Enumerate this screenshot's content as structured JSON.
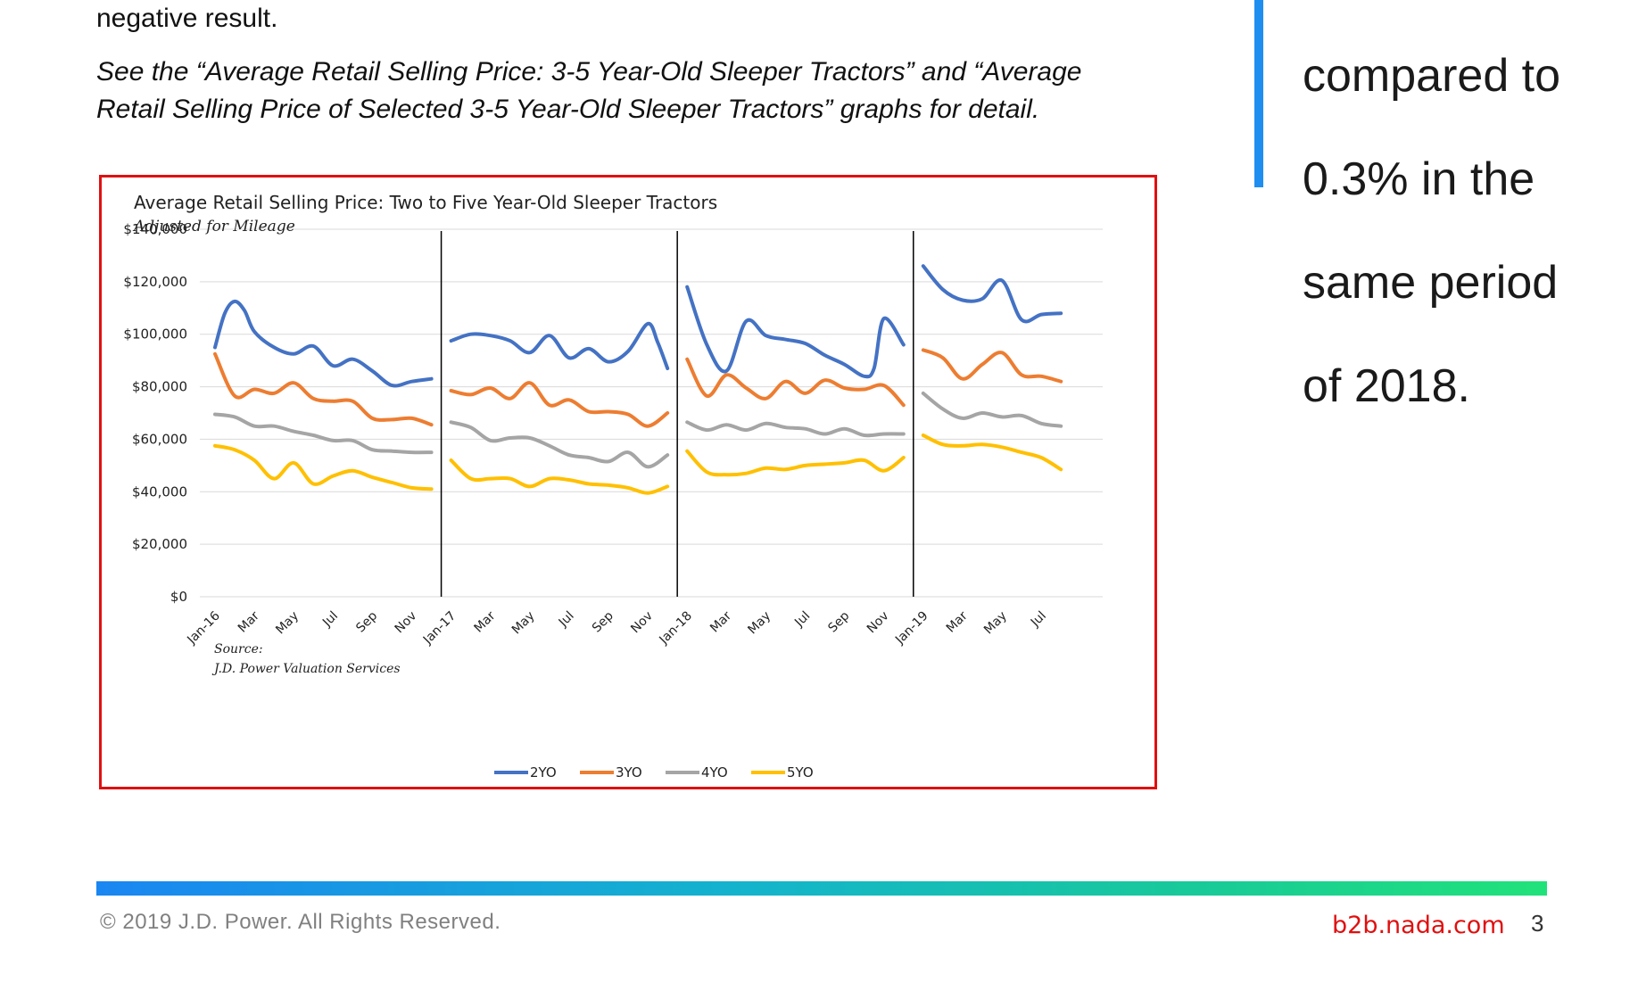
{
  "page": {
    "intro_text": "negative result.",
    "see_text": " See the “Average Retail Selling Price: 3-5 Year-Old Sleeper Tractors” and “Average Retail Selling Price of Selected 3-5 Year-Old Sleeper Tractors” graphs for detail.",
    "callout_lines": [
      "compared to",
      "0.3% in the",
      "same period",
      "of 2018."
    ],
    "footer": {
      "copyright": "© 2019 J.D. Power. All Rights Reserved.",
      "site": "b2b.nada.com",
      "page_number": "3"
    }
  },
  "colors": {
    "frame": "#e01010",
    "callout_bar": "#1f8ef1",
    "2YO": "#4472c4",
    "3YO": "#ed7d31",
    "4YO": "#a5a5a5",
    "5YO": "#ffc000"
  },
  "chart_data": {
    "type": "line",
    "title": "Average Retail Selling Price: Two to Five Year-Old Sleeper Tractors",
    "subtitle": "Adjusted for Mileage",
    "source_label": "Source:",
    "source_text": "J.D. Power Valuation Services",
    "ylim": [
      0,
      140000
    ],
    "yticks": [
      0,
      20000,
      40000,
      60000,
      80000,
      100000,
      120000,
      140000
    ],
    "ytick_labels": [
      "$0",
      "$20,000",
      "$40,000",
      "$60,000",
      "$80,000",
      "$100,000",
      "$120,000",
      "$140,000"
    ],
    "grid": true,
    "legend_position": "bottom",
    "x_tick_labels": [
      "Jan-16",
      "Mar",
      "May",
      "Jul",
      "Sep",
      "Nov",
      "Jan-17",
      "Mar",
      "May",
      "Jul",
      "Sep",
      "Nov",
      "Jan-18",
      "Mar",
      "May",
      "Jul",
      "Sep",
      "Nov",
      "Jan-19",
      "Mar",
      "May",
      "Jul"
    ],
    "x_tick_months": [
      0,
      2,
      4,
      6,
      8,
      10,
      12,
      14,
      16,
      18,
      20,
      22,
      24,
      26,
      28,
      30,
      32,
      34,
      36,
      38,
      40,
      42
    ],
    "year_dividers": [
      11.5,
      23.5,
      35.5
    ],
    "series": [
      {
        "name": "2YO",
        "segments": [
          {
            "x": [
              0,
              0.5,
              1,
              1.5,
              2,
              3,
              4,
              5,
              6,
              7,
              8,
              9,
              10,
              11
            ],
            "y": [
              95000,
              108000,
              112500,
              109000,
              101000,
              95000,
              92500,
              95500,
              88000,
              90500,
              86000,
              80500,
              82000,
              83000
            ]
          },
          {
            "x": [
              12,
              13,
              14,
              15,
              16,
              17,
              18,
              19,
              20,
              21,
              22,
              22.5,
              23
            ],
            "y": [
              97500,
              100000,
              99500,
              97500,
              93000,
              99500,
              91000,
              94500,
              89500,
              93500,
              104000,
              97000,
              87000
            ]
          },
          {
            "x": [
              24,
              25,
              26,
              27,
              28,
              29,
              30,
              31,
              32,
              33,
              33.5,
              34,
              35
            ],
            "y": [
              118000,
              96000,
              86000,
              105000,
              99500,
              98000,
              96500,
              92000,
              88500,
              84000,
              87000,
              106000,
              96000
            ]
          },
          {
            "x": [
              36,
              37,
              38,
              39,
              40,
              41,
              42,
              43
            ],
            "y": [
              126000,
              117000,
              113000,
              113500,
              120500,
              105500,
              107500,
              108000
            ]
          }
        ]
      },
      {
        "name": "3YO",
        "segments": [
          {
            "x": [
              0,
              1,
              2,
              3,
              4,
              5,
              6,
              7,
              8,
              9,
              10,
              11
            ],
            "y": [
              92500,
              76500,
              79000,
              77500,
              81500,
              75500,
              74500,
              74500,
              68000,
              67500,
              68000,
              65500
            ]
          },
          {
            "x": [
              12,
              13,
              14,
              15,
              16,
              17,
              18,
              19,
              20,
              21,
              22,
              23
            ],
            "y": [
              78500,
              77000,
              79500,
              75500,
              81500,
              73000,
              75000,
              70500,
              70500,
              69500,
              65000,
              70000
            ]
          },
          {
            "x": [
              24,
              25,
              26,
              27,
              28,
              29,
              30,
              31,
              32,
              33,
              34,
              35
            ],
            "y": [
              90500,
              76500,
              84500,
              79500,
              75500,
              82000,
              77500,
              82500,
              79500,
              79000,
              80500,
              73000
            ]
          },
          {
            "x": [
              36,
              37,
              38,
              39,
              40,
              41,
              42,
              43
            ],
            "y": [
              94000,
              91000,
              83000,
              88500,
              93000,
              84500,
              84000,
              82000
            ]
          }
        ]
      },
      {
        "name": "4YO",
        "segments": [
          {
            "x": [
              0,
              1,
              2,
              3,
              4,
              5,
              6,
              7,
              8,
              9,
              10,
              11
            ],
            "y": [
              69500,
              68500,
              65000,
              65000,
              63000,
              61500,
              59500,
              59500,
              56000,
              55500,
              55000,
              55000
            ]
          },
          {
            "x": [
              12,
              13,
              14,
              15,
              16,
              17,
              18,
              19,
              20,
              21,
              22,
              23
            ],
            "y": [
              66500,
              64500,
              59500,
              60500,
              60500,
              57500,
              54000,
              53000,
              51500,
              55000,
              49500,
              54000
            ]
          },
          {
            "x": [
              24,
              25,
              26,
              27,
              28,
              29,
              30,
              31,
              32,
              33,
              34,
              35
            ],
            "y": [
              66500,
              63500,
              65500,
              63500,
              66000,
              64500,
              64000,
              62000,
              64000,
              61500,
              62000,
              62000
            ]
          },
          {
            "x": [
              36,
              37,
              38,
              39,
              40,
              41,
              42,
              43
            ],
            "y": [
              77500,
              71500,
              68000,
              70000,
              68500,
              69000,
              66000,
              65000
            ]
          }
        ]
      },
      {
        "name": "5YO",
        "segments": [
          {
            "x": [
              0,
              1,
              2,
              3,
              4,
              5,
              6,
              7,
              8,
              9,
              10,
              11
            ],
            "y": [
              57500,
              56000,
              52000,
              45000,
              51000,
              43000,
              46000,
              48000,
              45500,
              43500,
              41500,
              41000
            ]
          },
          {
            "x": [
              12,
              13,
              14,
              15,
              16,
              17,
              18,
              19,
              20,
              21,
              22,
              23
            ],
            "y": [
              52000,
              45000,
              45000,
              45000,
              42000,
              45000,
              44500,
              43000,
              42500,
              41500,
              39500,
              42000
            ]
          },
          {
            "x": [
              24,
              25,
              26,
              27,
              28,
              29,
              30,
              31,
              32,
              33,
              34,
              35
            ],
            "y": [
              55500,
              47500,
              46500,
              47000,
              49000,
              48500,
              50000,
              50500,
              51000,
              52000,
              48000,
              53000
            ]
          },
          {
            "x": [
              36,
              37,
              38,
              39,
              40,
              41,
              42,
              43
            ],
            "y": [
              61500,
              58000,
              57500,
              58000,
              57000,
              55000,
              53000,
              48500
            ]
          }
        ]
      }
    ]
  }
}
